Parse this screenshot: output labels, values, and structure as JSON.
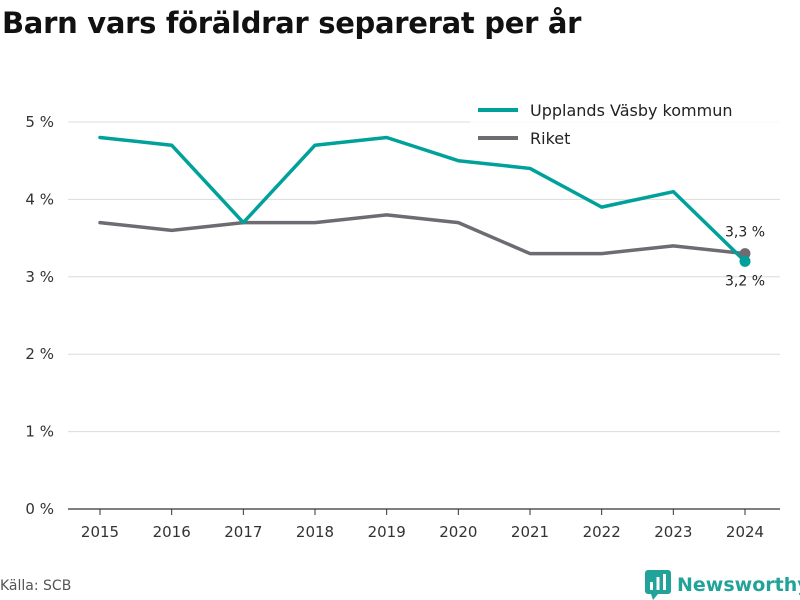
{
  "chart_data": {
    "type": "line",
    "title": "Barn vars föräldrar separerat per år",
    "x": [
      "2015",
      "2016",
      "2017",
      "2018",
      "2019",
      "2020",
      "2021",
      "2022",
      "2023",
      "2024"
    ],
    "yticks": [
      "0 %",
      "1 %",
      "2 %",
      "3 %",
      "4 %",
      "5 %"
    ],
    "ylim": [
      0,
      5
    ],
    "grid": true,
    "legend_position": "top-right",
    "series": [
      {
        "name": "Upplands Väsby kommun",
        "color": "#00a19a",
        "values": [
          4.8,
          4.7,
          3.7,
          4.7,
          4.8,
          4.5,
          4.4,
          3.9,
          4.1,
          3.2
        ]
      },
      {
        "name": "Riket",
        "color": "#6d6c72",
        "values": [
          3.7,
          3.6,
          3.7,
          3.7,
          3.8,
          3.7,
          3.3,
          3.3,
          3.4,
          3.3
        ]
      }
    ],
    "end_labels": [
      "3,2 %",
      "3,3 %"
    ]
  },
  "footer": {
    "source": "Källa: SCB",
    "brand": "Newsworthy",
    "brand_icon": "bar-chart-bubble-icon",
    "brand_color": "#22a39a"
  }
}
